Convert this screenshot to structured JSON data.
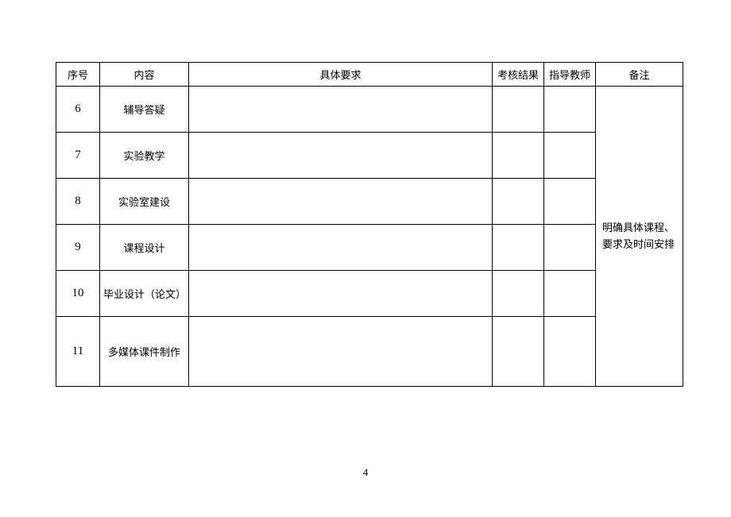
{
  "table": {
    "headers": {
      "seq": "序号",
      "content": "内容",
      "requirements": "具体要求",
      "result": "考核结果",
      "advisor": "指导教师",
      "remarks": "备注"
    },
    "rows": [
      {
        "seq": "6",
        "content": "辅导答疑",
        "requirements": "",
        "result": "",
        "advisor": ""
      },
      {
        "seq": "7",
        "content": "实验教学",
        "requirements": "",
        "result": "",
        "advisor": ""
      },
      {
        "seq": "8",
        "content": "实验室建设",
        "requirements": "",
        "result": "",
        "advisor": ""
      },
      {
        "seq": "9",
        "content": "课程设计",
        "requirements": "",
        "result": "",
        "advisor": ""
      },
      {
        "seq": "10",
        "content": "毕业设计（论文）",
        "requirements": "",
        "result": "",
        "advisor": ""
      },
      {
        "seq": "11",
        "content": "多媒体课件制作",
        "requirements": "",
        "result": "",
        "advisor": ""
      }
    ],
    "remarks_merged": "明确具体课程、要求及时间安排"
  },
  "page_number": "4",
  "colors": {
    "background": "#ffffff",
    "border": "#000000",
    "text": "#000000"
  },
  "fonts": {
    "body_size": 13,
    "seq_size": 15
  }
}
